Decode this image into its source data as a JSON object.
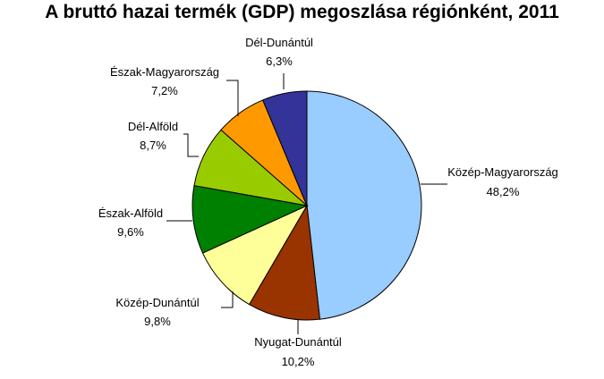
{
  "chart_data": {
    "type": "pie",
    "title": "A bruttó hazai termék (GDP) megoszlása régiónként, 2011",
    "slices": [
      {
        "name": "Közép-Magyarország",
        "value": 48.2,
        "label": "48,2%",
        "color": "#99ccff"
      },
      {
        "name": "Nyugat-Dunántúl",
        "value": 10.2,
        "label": "10,2%",
        "color": "#993300"
      },
      {
        "name": "Közép-Dunántúl",
        "value": 9.8,
        "label": "9,8%",
        "color": "#ffff99"
      },
      {
        "name": "Észak-Alföld",
        "value": 9.6,
        "label": "9,6%",
        "color": "#008000"
      },
      {
        "name": "Dél-Alföld",
        "value": 8.7,
        "label": "8,7%",
        "color": "#99cc00"
      },
      {
        "name": "Észak-Magyarország",
        "value": 7.2,
        "label": "7,2%",
        "color": "#ff9900"
      },
      {
        "name": "Dél-Dunántúl",
        "value": 6.3,
        "label": "6,3%",
        "color": "#333399"
      }
    ],
    "legend": "none",
    "start_angle_deg": 0,
    "direction": "clockwise"
  }
}
